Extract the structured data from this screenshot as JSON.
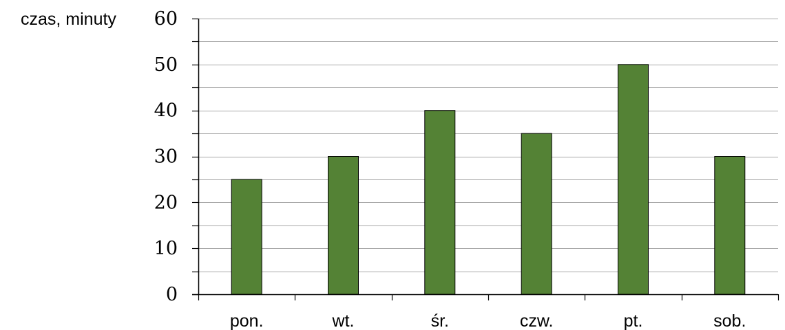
{
  "chart_data": {
    "type": "bar",
    "categories": [
      "pon.",
      "wt.",
      "śr.",
      "czw.",
      "pt.",
      "sob."
    ],
    "values": [
      25,
      30,
      40,
      35,
      50,
      30
    ],
    "title": "",
    "xlabel": "",
    "ylabel": "czas, minuty",
    "ylim": [
      0,
      60
    ],
    "yticks": [
      0,
      10,
      20,
      30,
      40,
      50,
      60
    ],
    "ytick_labels": [
      "0",
      "10",
      "20",
      "30",
      "40",
      "50",
      "60"
    ],
    "minor_gridlines": [
      5,
      15,
      25,
      35,
      45,
      55
    ],
    "grid": true,
    "legend": "none",
    "colors": {
      "bar": "#548235",
      "bar_edge": "#000000",
      "grid": "#a6a6a6",
      "axis": "#000000"
    }
  }
}
